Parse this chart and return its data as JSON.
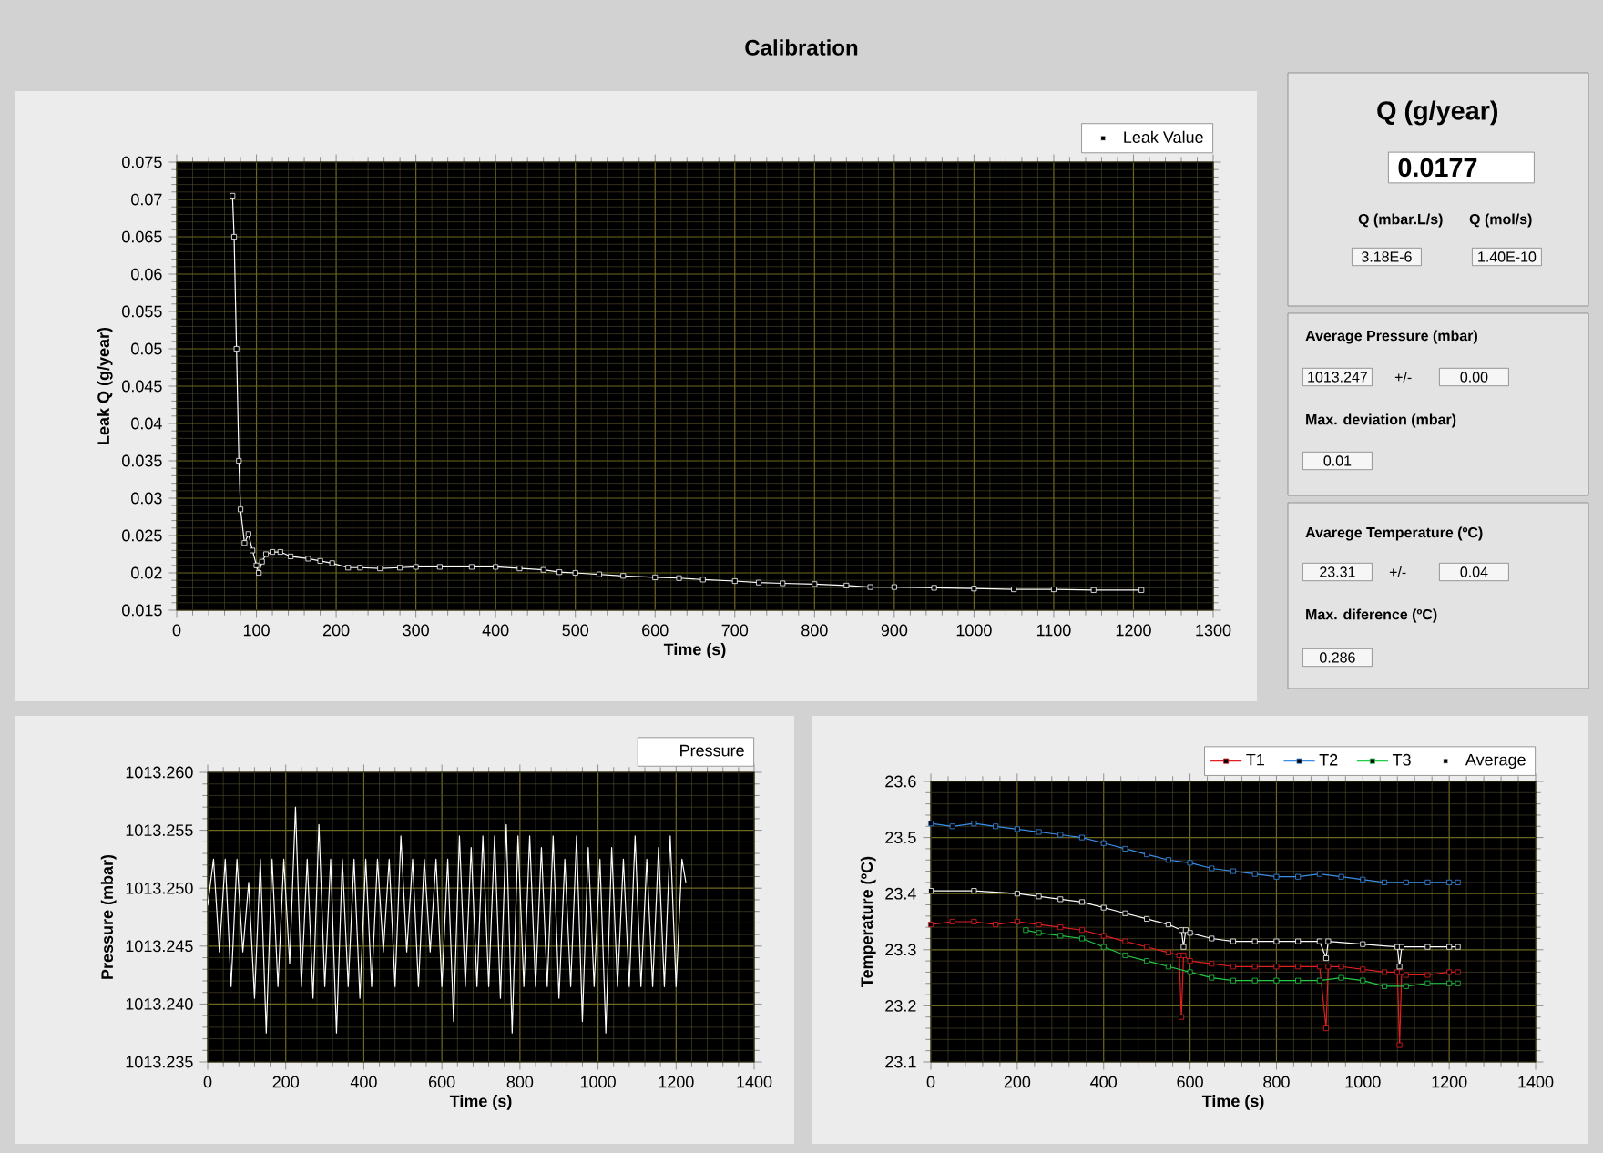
{
  "chart_data": [
    {
      "type": "line",
      "title": "Calibration",
      "xlabel": "Time (s)",
      "ylabel": "Leak Q (g/year)",
      "xlim": [
        0,
        1300
      ],
      "xticks": [
        0,
        100,
        200,
        300,
        400,
        500,
        600,
        700,
        800,
        900,
        1000,
        1100,
        1200,
        1300
      ],
      "ylim": [
        0.015,
        0.075
      ],
      "yticks": [
        0.015,
        0.02,
        0.025,
        0.03,
        0.035,
        0.04,
        0.045,
        0.05,
        0.055,
        0.06,
        0.065,
        0.07,
        0.075
      ],
      "grid": true,
      "legend": "top right",
      "marker": "square",
      "series": [
        {
          "name": "Leak Value",
          "color": "#ffffff",
          "x": [
            70,
            72,
            75,
            78,
            80,
            85,
            90,
            95,
            100,
            103,
            107,
            112,
            120,
            130,
            143,
            165,
            180,
            195,
            215,
            230,
            255,
            280,
            300,
            330,
            370,
            400,
            430,
            460,
            480,
            500,
            530,
            560,
            600,
            630,
            660,
            700,
            730,
            760,
            800,
            840,
            870,
            900,
            950,
            1000,
            1050,
            1100,
            1150,
            1210
          ],
          "values": [
            0.0705,
            0.065,
            0.05,
            0.035,
            0.0285,
            0.024,
            0.0252,
            0.023,
            0.021,
            0.02,
            0.0215,
            0.0225,
            0.0228,
            0.0228,
            0.0222,
            0.0219,
            0.0216,
            0.0213,
            0.0207,
            0.0207,
            0.0206,
            0.0207,
            0.0208,
            0.0208,
            0.0208,
            0.0208,
            0.0206,
            0.0204,
            0.0201,
            0.02,
            0.0198,
            0.0196,
            0.0194,
            0.0193,
            0.0191,
            0.0189,
            0.0187,
            0.0186,
            0.0185,
            0.0183,
            0.0181,
            0.0181,
            0.018,
            0.0179,
            0.0178,
            0.0178,
            0.0177,
            0.0177
          ]
        }
      ]
    },
    {
      "type": "line",
      "xlabel": "Time (s)",
      "ylabel": "Pressure (mbar)",
      "xlim": [
        0,
        1400
      ],
      "xticks": [
        0,
        200,
        400,
        600,
        800,
        1000,
        1200,
        1400
      ],
      "ylim": [
        1013.235,
        1013.26
      ],
      "yticks": [
        1013.235,
        {
          "value": 1013.24,
          "label": "1013.240"
        },
        1013.245,
        {
          "value": 1013.25,
          "label": "1013.250"
        },
        1013.255,
        {
          "value": 1013.26,
          "label": "1013.260"
        }
      ],
      "grid": true,
      "legend": "top right",
      "series": [
        {
          "name": "Pressure",
          "color": "#ffffff",
          "x": [
            0,
            15,
            30,
            45,
            60,
            75,
            90,
            105,
            120,
            135,
            150,
            165,
            180,
            195,
            210,
            225,
            240,
            255,
            270,
            285,
            300,
            315,
            330,
            345,
            360,
            375,
            390,
            405,
            420,
            435,
            450,
            465,
            480,
            495,
            510,
            525,
            540,
            555,
            570,
            585,
            600,
            615,
            630,
            645,
            660,
            675,
            690,
            705,
            720,
            735,
            750,
            765,
            780,
            795,
            810,
            825,
            840,
            855,
            870,
            885,
            900,
            915,
            930,
            945,
            960,
            975,
            990,
            1005,
            1020,
            1035,
            1050,
            1065,
            1080,
            1095,
            1110,
            1125,
            1140,
            1155,
            1170,
            1185,
            1200,
            1215,
            1225
          ],
          "values": [
            1013.2485,
            1013.2525,
            1013.2445,
            1013.2525,
            1013.2415,
            1013.2525,
            1013.2445,
            1013.2505,
            1013.2405,
            1013.2525,
            1013.2375,
            1013.2525,
            1013.2415,
            1013.2525,
            1013.2435,
            1013.257,
            1013.2415,
            1013.2525,
            1013.2405,
            1013.2555,
            1013.2415,
            1013.2525,
            1013.2375,
            1013.2525,
            1013.2415,
            1013.2525,
            1013.2405,
            1013.2525,
            1013.2415,
            1013.2525,
            1013.2445,
            1013.2525,
            1013.2415,
            1013.2545,
            1013.2445,
            1013.2525,
            1013.2415,
            1013.2525,
            1013.2445,
            1013.2525,
            1013.2415,
            1013.2525,
            1013.2385,
            1013.2545,
            1013.2415,
            1013.2535,
            1013.2415,
            1013.2545,
            1013.2415,
            1013.2545,
            1013.2405,
            1013.2555,
            1013.2375,
            1013.2545,
            1013.2415,
            1013.2545,
            1013.2415,
            1013.2535,
            1013.2415,
            1013.2545,
            1013.2405,
            1013.2525,
            1013.2415,
            1013.2545,
            1013.2385,
            1013.2535,
            1013.2415,
            1013.2525,
            1013.2375,
            1013.2535,
            1013.2415,
            1013.2525,
            1013.2415,
            1013.2545,
            1013.2415,
            1013.2525,
            1013.2415,
            1013.2535,
            1013.2415,
            1013.2545,
            1013.2415,
            1013.2525,
            1013.2505
          ]
        }
      ]
    },
    {
      "type": "line",
      "xlabel": "Time (s)",
      "ylabel": "Temperature (ºC)",
      "xlim": [
        0,
        1400
      ],
      "xticks": [
        0,
        200,
        400,
        600,
        800,
        1000,
        1200,
        1400
      ],
      "ylim": [
        23.1,
        23.6
      ],
      "yticks": [
        23.1,
        23.2,
        23.3,
        23.4,
        23.5,
        23.6
      ],
      "grid": true,
      "legend": "top",
      "marker": "square",
      "series": [
        {
          "name": "T1",
          "color": "#e02020",
          "x": [
            0,
            50,
            100,
            150,
            200,
            250,
            300,
            350,
            400,
            450,
            500,
            550,
            575,
            580,
            585,
            600,
            650,
            700,
            750,
            800,
            850,
            900,
            915,
            920,
            950,
            1000,
            1050,
            1080,
            1085,
            1090,
            1100,
            1150,
            1200,
            1220
          ],
          "values": [
            23.345,
            23.35,
            23.35,
            23.345,
            23.35,
            23.345,
            23.34,
            23.335,
            23.325,
            23.315,
            23.305,
            23.295,
            23.29,
            23.18,
            23.29,
            23.28,
            23.275,
            23.27,
            23.27,
            23.27,
            23.27,
            23.27,
            23.16,
            23.27,
            23.27,
            23.265,
            23.26,
            23.26,
            23.13,
            23.26,
            23.255,
            23.255,
            23.26,
            23.26
          ]
        },
        {
          "name": "T2",
          "color": "#3a8ee6",
          "x": [
            0,
            50,
            100,
            150,
            200,
            250,
            300,
            350,
            400,
            450,
            500,
            550,
            600,
            650,
            700,
            750,
            800,
            850,
            900,
            950,
            1000,
            1050,
            1100,
            1150,
            1200,
            1220
          ],
          "values": [
            23.525,
            23.52,
            23.525,
            23.52,
            23.515,
            23.51,
            23.505,
            23.5,
            23.49,
            23.48,
            23.47,
            23.46,
            23.455,
            23.445,
            23.44,
            23.435,
            23.43,
            23.43,
            23.435,
            23.43,
            23.425,
            23.42,
            23.42,
            23.42,
            23.42,
            23.42
          ]
        },
        {
          "name": "T3",
          "color": "#22cc44",
          "x": [
            220,
            250,
            300,
            350,
            400,
            450,
            500,
            550,
            600,
            650,
            700,
            750,
            800,
            850,
            900,
            950,
            1000,
            1050,
            1100,
            1150,
            1200,
            1220
          ],
          "values": [
            23.335,
            23.33,
            23.325,
            23.32,
            23.305,
            23.29,
            23.28,
            23.27,
            23.26,
            23.25,
            23.245,
            23.245,
            23.245,
            23.245,
            23.245,
            23.25,
            23.245,
            23.235,
            23.235,
            23.24,
            23.24,
            23.24
          ]
        },
        {
          "name": "Average",
          "color": "#ffffff",
          "x": [
            0,
            100,
            200,
            250,
            300,
            350,
            400,
            450,
            500,
            550,
            580,
            585,
            590,
            600,
            650,
            700,
            750,
            800,
            850,
            900,
            915,
            920,
            1000,
            1080,
            1085,
            1090,
            1150,
            1200,
            1220
          ],
          "values": [
            23.405,
            23.405,
            23.4,
            23.395,
            23.39,
            23.385,
            23.375,
            23.365,
            23.355,
            23.345,
            23.335,
            23.305,
            23.335,
            23.33,
            23.32,
            23.315,
            23.315,
            23.315,
            23.315,
            23.315,
            23.285,
            23.315,
            23.31,
            23.305,
            23.27,
            23.305,
            23.305,
            23.305,
            23.305
          ]
        }
      ]
    },
    {
      "type": "other",
      "annotations": [
        "Q (g/year)",
        "0.0177",
        "Q (mbar.L/s)",
        "3.18E-6",
        "Q (mol/s)",
        "1.40E-10",
        "Average Pressure (mbar)",
        "1013.247",
        "+/-",
        "0.00",
        "Max. deviation (mbar)",
        "0.01",
        "Avarege Temperature (ºC)",
        "23.31",
        "+/-",
        "0.04",
        "Max. diference (ºC)",
        "0.286"
      ]
    }
  ]
}
